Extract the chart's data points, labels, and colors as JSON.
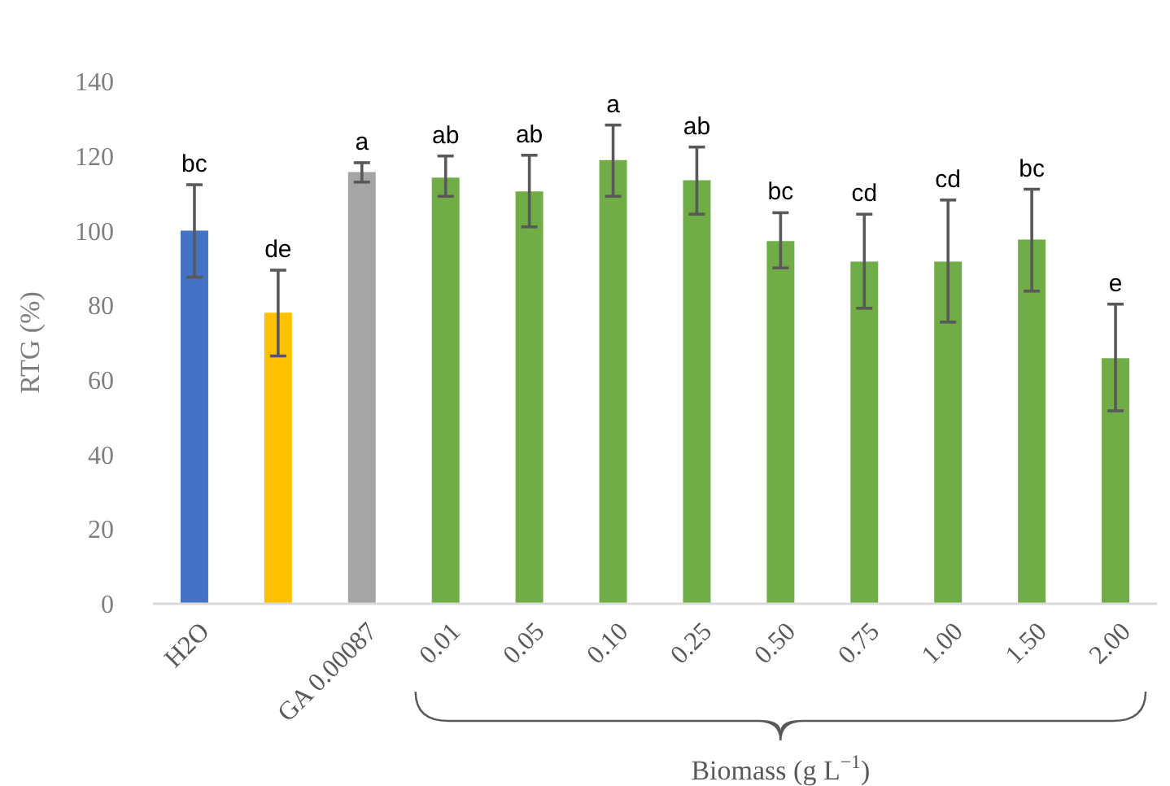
{
  "chart_data": {
    "type": "bar",
    "ylabel": "RTG (%)",
    "xlabel": "Biomass (g L$^{−1}$)",
    "categories": [
      "H2O",
      null,
      "GA 0.00087",
      "0.01",
      "0.05",
      "0.10",
      "0.25",
      "0.50",
      "0.75",
      "1.00",
      "1.50",
      "2.00"
    ],
    "values": [
      100,
      78,
      115.7,
      114.2,
      110.5,
      118.9,
      113.5,
      97.2,
      91.7,
      91.7,
      97.6,
      65.8
    ],
    "colors": [
      "#4472c4",
      "#ffc000",
      "#a5a5a5",
      "#70ad47",
      "#70ad47",
      "#70ad47",
      "#70ad47",
      "#70ad47",
      "#70ad47",
      "#70ad47",
      "#70ad47",
      "#70ad47"
    ],
    "errors": [
      [
        87.5,
        112.3
      ],
      [
        66.4,
        89.4
      ],
      [
        113,
        118.2
      ],
      [
        109.2,
        120
      ],
      [
        101,
        120.2
      ],
      [
        109.2,
        128.3
      ],
      [
        104.4,
        122.4
      ],
      [
        90,
        104.8
      ],
      [
        79.2,
        104.4
      ],
      [
        75.5,
        108.2
      ],
      [
        83.8,
        111.1
      ],
      [
        51.7,
        80.3
      ]
    ],
    "annotations": [
      {
        "text": "bc",
        "x": "H2O",
        "y": 112.3
      },
      {
        "text": "de",
        "y": 89.4
      },
      {
        "text": "a",
        "x": "GA 0.00087",
        "y": 118.2
      },
      {
        "text": "ab",
        "x": "0.01",
        "y": 120
      },
      {
        "text": "ab",
        "x": "0.05",
        "y": 120.2
      },
      {
        "text": "a",
        "x": "0.10",
        "y": 128.3
      },
      {
        "text": "ab",
        "x": "0.25",
        "y": 122.4
      },
      {
        "text": "bc",
        "x": "0.50",
        "y": 104.8
      },
      {
        "text": "cd",
        "x": "0.75",
        "y": 104.4
      },
      {
        "text": "cd",
        "x": "1.00",
        "y": 108.2
      },
      {
        "text": "bc",
        "x": "1.50",
        "y": 111.1
      },
      {
        "text": "e",
        "x": "2.00",
        "y": 80.3
      }
    ],
    "ylim": [
      0,
      140
    ],
    "yticks": [
      0,
      20,
      40,
      60,
      80,
      100,
      120,
      140
    ],
    "grid": false
  }
}
